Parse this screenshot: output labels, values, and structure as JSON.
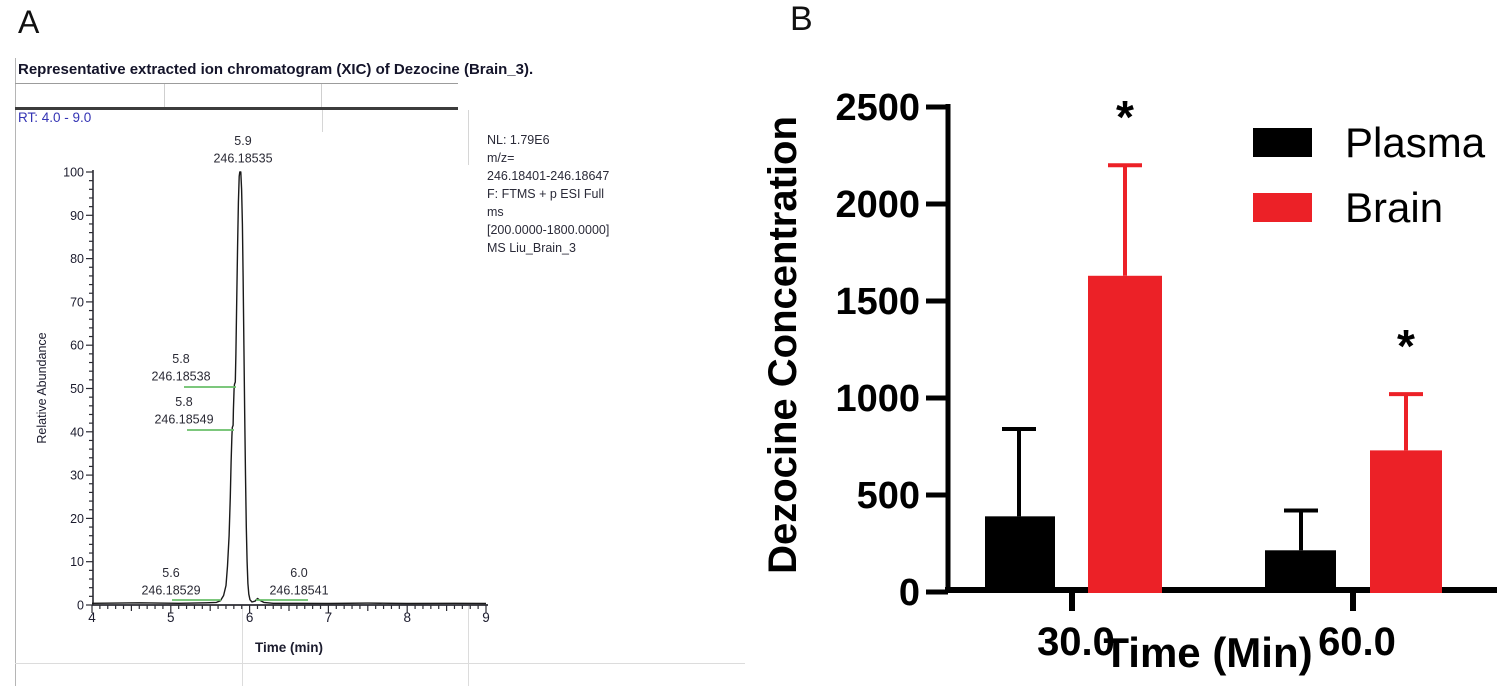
{
  "panels": {
    "a": {
      "label": "A"
    },
    "b": {
      "label": "B"
    }
  },
  "colors": {
    "plasma": "#000000",
    "brain": "#EC2127",
    "trace": "#1a1a1a",
    "green_pointer": "#6abf69",
    "axis_text_a": "#1c1c2e",
    "rt_blue": "#3434b4"
  },
  "chart_data": [
    {
      "id": "xic",
      "type": "line",
      "title": "Representative extracted ion chromatogram (XIC) of Dezocine (Brain_3).",
      "rt_range_label": "RT: 4.0 - 9.0",
      "xlabel": "Time (min)",
      "ylabel": "Relative Abundance",
      "xlim": [
        4,
        9
      ],
      "ylim": [
        0,
        100
      ],
      "x_ticks": [
        4,
        5,
        6,
        7,
        8,
        9
      ],
      "y_ticks": [
        0,
        10,
        20,
        30,
        40,
        50,
        60,
        70,
        80,
        90,
        100
      ],
      "grid": false,
      "annotation_text": "NL: 1.79E6\nm/z=\n246.18401-246.18647\nF: FTMS + p ESI Full\nms\n[200.0000-1800.0000]\n MS Liu_Brain_3",
      "peak_labels": [
        {
          "rt": "5.9",
          "mz": "246.18535",
          "abundance": 100
        },
        {
          "rt": "5.8",
          "mz": "246.18538",
          "abundance": 51
        },
        {
          "rt": "5.8",
          "mz": "246.18549",
          "abundance": 41
        },
        {
          "rt": "5.6",
          "mz": "246.18529",
          "abundance": 2
        },
        {
          "rt": "6.0",
          "mz": "246.18541",
          "abundance": 2
        }
      ],
      "trace": [
        [
          4.0,
          0.4
        ],
        [
          4.6,
          0.5
        ],
        [
          5.1,
          0.4
        ],
        [
          5.45,
          0.5
        ],
        [
          5.58,
          0.6
        ],
        [
          5.63,
          1.0
        ],
        [
          5.67,
          2.2
        ],
        [
          5.7,
          4.5
        ],
        [
          5.72,
          9
        ],
        [
          5.74,
          16
        ],
        [
          5.755,
          25
        ],
        [
          5.765,
          33
        ],
        [
          5.775,
          39
        ],
        [
          5.78,
          41
        ],
        [
          5.79,
          41.5
        ],
        [
          5.795,
          45
        ],
        [
          5.803,
          50
        ],
        [
          5.808,
          51
        ],
        [
          5.818,
          51.5
        ],
        [
          5.826,
          58
        ],
        [
          5.836,
          70
        ],
        [
          5.848,
          83
        ],
        [
          5.858,
          93
        ],
        [
          5.868,
          99
        ],
        [
          5.876,
          100
        ],
        [
          5.888,
          100
        ],
        [
          5.898,
          96
        ],
        [
          5.908,
          88
        ],
        [
          5.918,
          76
        ],
        [
          5.928,
          60
        ],
        [
          5.938,
          44
        ],
        [
          5.948,
          30
        ],
        [
          5.958,
          18
        ],
        [
          5.968,
          10
        ],
        [
          5.978,
          5
        ],
        [
          5.99,
          2.5
        ],
        [
          6.005,
          1.2
        ],
        [
          6.03,
          0.7
        ],
        [
          6.07,
          0.9
        ],
        [
          6.1,
          1.5
        ],
        [
          6.13,
          1.1
        ],
        [
          6.18,
          0.6
        ],
        [
          6.3,
          0.4
        ],
        [
          6.6,
          0.4
        ],
        [
          7.0,
          0.35
        ],
        [
          7.5,
          0.45
        ],
        [
          8.0,
          0.35
        ],
        [
          8.6,
          0.4
        ],
        [
          9.0,
          0.35
        ]
      ]
    },
    {
      "id": "concentration",
      "type": "bar",
      "categories": [
        "30.0",
        "60.0"
      ],
      "series": [
        {
          "name": "Plasma",
          "color": "#000000",
          "values": [
            390,
            215
          ],
          "errors_high": [
            840,
            420
          ],
          "significance": [
            "",
            ""
          ]
        },
        {
          "name": "Brain",
          "color": "#EC2127",
          "values": [
            1630,
            730
          ],
          "errors_high": [
            2200,
            1020
          ],
          "significance": [
            "*",
            "*"
          ]
        }
      ],
      "xlabel": "Time (Min)",
      "ylabel": "Dezocine Concentration",
      "ylim": [
        0,
        2500
      ],
      "y_ticks": [
        0,
        500,
        1000,
        1500,
        2000,
        2500
      ],
      "grid": false,
      "legend_position": "top-right"
    }
  ]
}
